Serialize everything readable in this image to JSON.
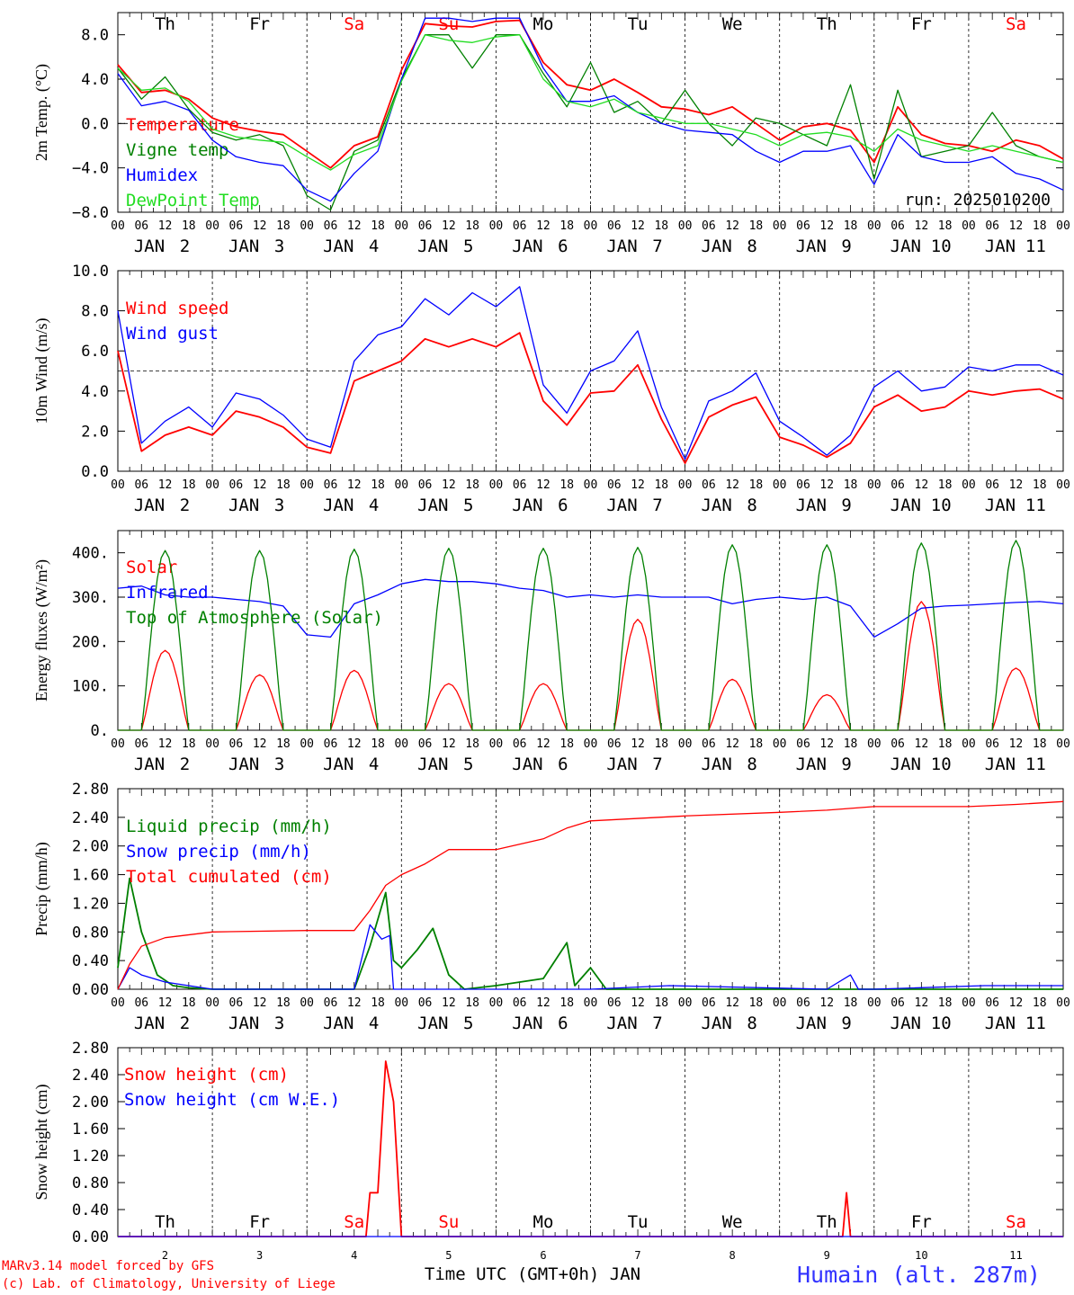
{
  "chart_data": [
    {
      "type": "line",
      "ylabel": "2m Temp. (°C)",
      "ylim": [
        -8.0,
        10.0
      ],
      "yticks": [
        "8.0",
        "4.0",
        "0.0",
        "−4.0",
        "−8.0"
      ],
      "day_labels": [
        "Th",
        "Fr",
        "Sa",
        "Su",
        "Mo",
        "Tu",
        "We",
        "Th",
        "Fr",
        "Sa"
      ],
      "hour_ticks": [
        "00",
        "06",
        "12",
        "18"
      ],
      "date_labels": [
        "JAN  2",
        "JAN  3",
        "JAN  4",
        "JAN  5",
        "JAN  6",
        "JAN  7",
        "JAN  8",
        "JAN  9",
        "JAN  10",
        "JAN  11"
      ],
      "annotation": "run: 2025010200",
      "reference_line": 0.0,
      "x_hours": [
        0,
        6,
        12,
        18,
        24,
        30,
        36,
        42,
        48,
        54,
        60,
        66,
        72,
        78,
        84,
        90,
        96,
        102,
        108,
        114,
        120,
        126,
        132,
        138,
        144,
        150,
        156,
        162,
        168,
        174,
        180,
        186,
        192,
        198,
        204,
        210,
        216,
        222,
        228,
        234,
        240
      ],
      "series": [
        {
          "name": "Temperature",
          "color": "#ff0000",
          "values": [
            5.3,
            2.8,
            3.0,
            2.2,
            0.5,
            -0.3,
            -0.7,
            -1.0,
            -2.5,
            -4.0,
            -2.0,
            -1.2,
            4.8,
            9.0,
            8.8,
            8.7,
            9.2,
            9.3,
            5.5,
            3.5,
            3.0,
            4.0,
            2.8,
            1.5,
            1.3,
            0.8,
            1.5,
            0.0,
            -1.5,
            -0.3,
            0.0,
            -0.6,
            -3.5,
            1.5,
            -1.0,
            -1.8,
            -2.0,
            -2.5,
            -1.5,
            -2.0,
            -3.2
          ]
        },
        {
          "name": "Vigne temp",
          "color": "#008000",
          "values": [
            5.0,
            2.2,
            4.2,
            1.3,
            -0.8,
            -1.5,
            -1.0,
            -2.0,
            -6.5,
            -7.8,
            -2.5,
            -1.5,
            4.0,
            8.0,
            8.0,
            5.0,
            8.0,
            8.0,
            4.5,
            1.5,
            5.5,
            1.0,
            2.0,
            0.0,
            3.0,
            0.0,
            -2.0,
            0.5,
            0.0,
            -1.0,
            -2.0,
            3.5,
            -5.0,
            3.0,
            -3.0,
            -2.5,
            -2.0,
            1.0,
            -2.0,
            -3.0,
            -3.5
          ]
        },
        {
          "name": "Humidex",
          "color": "#0000ff",
          "values": [
            4.5,
            1.6,
            2.0,
            1.2,
            -1.5,
            -3.0,
            -3.5,
            -3.8,
            -6.0,
            -7.0,
            -4.5,
            -2.5,
            4.0,
            9.5,
            9.5,
            9.2,
            9.5,
            9.5,
            5.0,
            2.0,
            2.0,
            2.5,
            1.0,
            0.0,
            -0.6,
            -0.8,
            -1.0,
            -2.5,
            -3.5,
            -2.5,
            -2.5,
            -2.0,
            -5.5,
            -1.0,
            -3.0,
            -3.5,
            -3.5,
            -3.0,
            -4.5,
            -5.0,
            -6.0
          ]
        },
        {
          "name": "DewPoint Temp",
          "color": "#22dd22",
          "values": [
            5.0,
            3.0,
            3.2,
            2.0,
            -0.5,
            -1.2,
            -1.5,
            -1.7,
            -3.0,
            -4.2,
            -2.8,
            -2.0,
            3.8,
            8.0,
            7.5,
            7.3,
            7.8,
            8.0,
            4.0,
            2.0,
            1.5,
            2.2,
            1.0,
            0.5,
            0.0,
            0.0,
            -0.5,
            -1.0,
            -2.0,
            -1.0,
            -0.8,
            -1.2,
            -2.5,
            -0.5,
            -1.5,
            -2.0,
            -2.5,
            -2.0,
            -2.5,
            -3.0,
            -3.5
          ]
        }
      ]
    },
    {
      "type": "line",
      "ylabel": "10m Wind (m/s)",
      "ylim": [
        0.0,
        10.0
      ],
      "yticks": [
        "10.0",
        "8.0",
        "6.0",
        "4.0",
        "2.0",
        "0.0"
      ],
      "reference_line": 5.0,
      "x_hours": [
        0,
        6,
        12,
        18,
        24,
        30,
        36,
        42,
        48,
        54,
        60,
        66,
        72,
        78,
        84,
        90,
        96,
        102,
        108,
        114,
        120,
        126,
        132,
        138,
        144,
        150,
        156,
        162,
        168,
        174,
        180,
        186,
        192,
        198,
        204,
        210,
        216,
        222,
        228,
        234,
        240
      ],
      "series": [
        {
          "name": "Wind speed",
          "color": "#ff0000",
          "values": [
            6.0,
            1.0,
            1.8,
            2.2,
            1.8,
            3.0,
            2.7,
            2.2,
            1.2,
            0.9,
            4.5,
            5.0,
            5.5,
            6.6,
            6.2,
            6.6,
            6.2,
            6.9,
            3.5,
            2.3,
            3.9,
            4.0,
            5.3,
            2.6,
            0.4,
            2.7,
            3.3,
            3.7,
            1.7,
            1.3,
            0.7,
            1.4,
            3.2,
            3.8,
            3.0,
            3.2,
            4.0,
            3.8,
            4.0,
            4.1,
            3.6
          ]
        },
        {
          "name": "Wind gust",
          "color": "#0000ff",
          "values": [
            8.0,
            1.4,
            2.5,
            3.2,
            2.2,
            3.9,
            3.6,
            2.8,
            1.6,
            1.2,
            5.5,
            6.8,
            7.2,
            8.6,
            7.8,
            8.9,
            8.2,
            9.2,
            4.3,
            2.9,
            5.0,
            5.5,
            7.0,
            3.2,
            0.6,
            3.5,
            4.0,
            4.9,
            2.5,
            1.7,
            0.8,
            1.8,
            4.2,
            5.0,
            4.0,
            4.2,
            5.2,
            5.0,
            5.3,
            5.3,
            4.8
          ]
        }
      ]
    },
    {
      "type": "line",
      "ylabel": "Energy fluxes (W/m²)",
      "ylim": [
        0,
        450
      ],
      "yticks": [
        "400.",
        "300.",
        "200.",
        "100.",
        "0."
      ],
      "series": [
        {
          "name": "Solar",
          "color": "#ff0000",
          "peaks": [
            180,
            125,
            135,
            105,
            105,
            250,
            115,
            80,
            290,
            140
          ]
        },
        {
          "name": "Infrared",
          "color": "#0000ff",
          "x_hours": [
            0,
            6,
            12,
            18,
            24,
            30,
            36,
            42,
            48,
            54,
            60,
            66,
            72,
            78,
            84,
            90,
            96,
            102,
            108,
            114,
            120,
            126,
            132,
            138,
            144,
            150,
            156,
            162,
            168,
            174,
            180,
            186,
            192,
            198,
            204,
            210,
            216,
            222,
            228,
            234,
            240
          ],
          "values": [
            320,
            325,
            305,
            300,
            300,
            295,
            290,
            280,
            215,
            210,
            285,
            305,
            330,
            340,
            335,
            335,
            330,
            320,
            315,
            300,
            305,
            300,
            305,
            300,
            300,
            300,
            285,
            295,
            300,
            295,
            300,
            280,
            210,
            240,
            275,
            280,
            282,
            285,
            288,
            290,
            285
          ]
        },
        {
          "name": "Top of Atmosphere (Solar)",
          "color": "#008000",
          "peaks": [
            405,
            405,
            408,
            410,
            410,
            412,
            418,
            418,
            422,
            428
          ]
        }
      ]
    },
    {
      "type": "line",
      "ylabel": "Precip (mm/h)",
      "ylim": [
        0.0,
        2.8
      ],
      "yticks": [
        "2.80",
        "2.40",
        "2.00",
        "1.60",
        "1.20",
        "0.80",
        "0.40",
        "0.00"
      ],
      "series": [
        {
          "name": "Liquid precip (mm/h)",
          "color": "#008000",
          "x_hours": [
            0,
            3,
            6,
            10,
            14,
            18,
            24,
            48,
            60,
            64,
            68,
            70,
            72,
            76,
            80,
            84,
            88,
            96,
            108,
            114,
            116,
            120,
            124,
            240
          ],
          "values": [
            0.3,
            1.55,
            0.8,
            0.2,
            0.05,
            0.02,
            0.0,
            0.0,
            0.0,
            0.6,
            1.35,
            0.4,
            0.3,
            0.55,
            0.85,
            0.2,
            0.0,
            0.05,
            0.15,
            0.65,
            0.05,
            0.3,
            0.0,
            0.0
          ]
        },
        {
          "name": "Snow precip (mm/h)",
          "color": "#0000ff",
          "x_hours": [
            0,
            3,
            6,
            12,
            18,
            24,
            60,
            64,
            67,
            69,
            70,
            120,
            140,
            180,
            186,
            188,
            192,
            220,
            240
          ],
          "values": [
            0.0,
            0.3,
            0.2,
            0.1,
            0.05,
            0.0,
            0.0,
            0.9,
            0.7,
            0.75,
            0.0,
            0.0,
            0.05,
            0.0,
            0.2,
            0.0,
            0.0,
            0.05,
            0.05
          ]
        },
        {
          "name": "Total cumulated (cm)",
          "color": "#ff0000",
          "x_hours": [
            0,
            3,
            6,
            12,
            24,
            48,
            60,
            64,
            68,
            72,
            78,
            84,
            96,
            108,
            114,
            120,
            144,
            168,
            180,
            192,
            216,
            228,
            240
          ],
          "values": [
            0.0,
            0.35,
            0.6,
            0.72,
            0.8,
            0.82,
            0.82,
            1.1,
            1.45,
            1.6,
            1.75,
            1.95,
            1.95,
            2.1,
            2.25,
            2.35,
            2.42,
            2.47,
            2.5,
            2.55,
            2.55,
            2.58,
            2.62
          ]
        }
      ]
    },
    {
      "type": "line",
      "ylabel": "Snow height (cm)",
      "ylim": [
        0.0,
        2.8
      ],
      "yticks": [
        "2.80",
        "2.40",
        "2.00",
        "1.60",
        "1.20",
        "0.80",
        "0.40",
        "0.00"
      ],
      "day_labels": [
        "Th",
        "Fr",
        "Sa",
        "Su",
        "Mo",
        "Tu",
        "We",
        "Th",
        "Fr",
        "Sa"
      ],
      "day_numbers": [
        "2",
        "3",
        "4",
        "5",
        "6",
        "7",
        "8",
        "9",
        "10",
        "11"
      ],
      "xlabel": "Time UTC (GMT+0h) JAN",
      "series": [
        {
          "name": "Snow height (cm)",
          "color": "#ff0000",
          "x_hours": [
            0,
            63,
            64,
            66,
            68,
            70,
            72,
            73,
            183,
            184,
            185,
            186,
            240
          ],
          "values": [
            0.0,
            0.0,
            0.65,
            0.65,
            2.6,
            2.0,
            0.0,
            0.0,
            0.0,
            0.0,
            0.65,
            0.0,
            0.0
          ]
        },
        {
          "name": "Snow height (cm W.E.)",
          "color": "#0000ff",
          "x_hours": [
            0,
            240
          ],
          "values": [
            0.0,
            0.0
          ]
        }
      ]
    }
  ],
  "footer": {
    "credit_line1": "MARv3.14 model forced by GFS",
    "credit_line2": "(c) Lab. of Climatology, University of Liege",
    "station": "Humain (alt. 287m)"
  }
}
